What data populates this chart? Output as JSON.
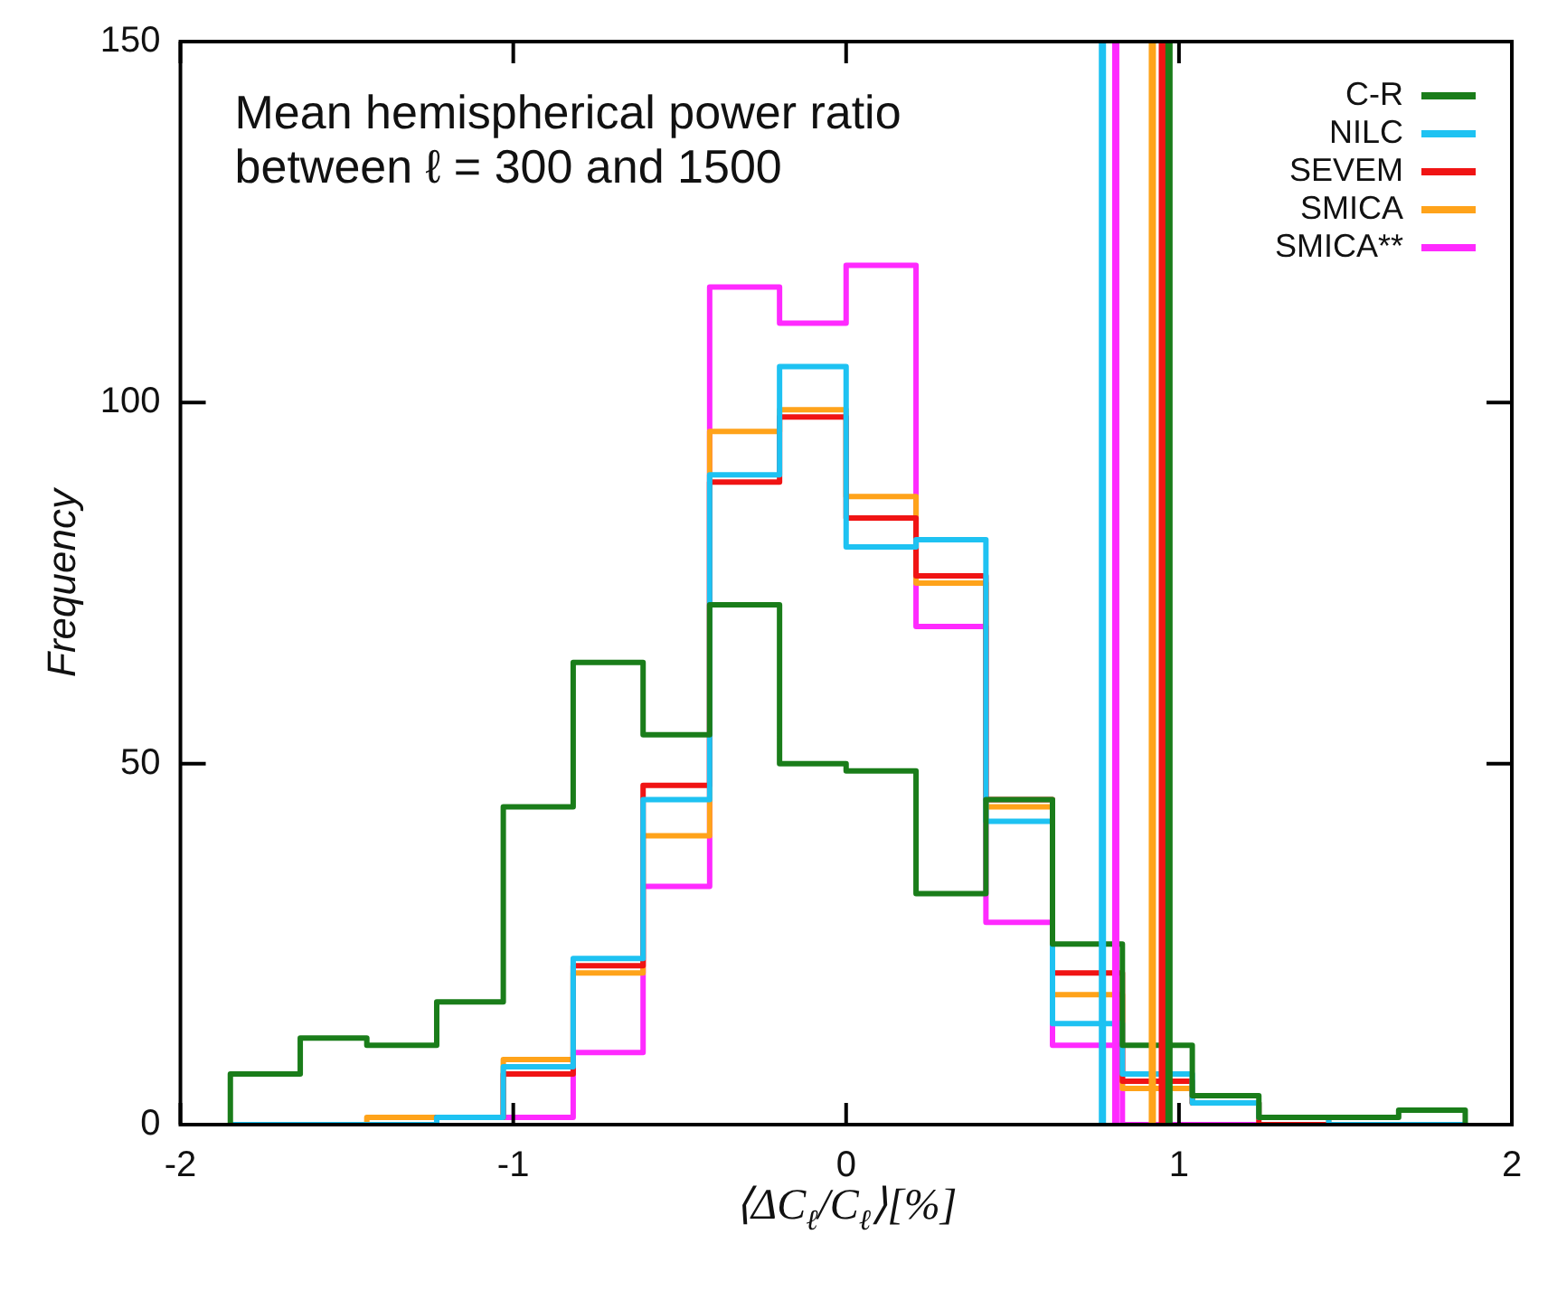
{
  "chart_data": {
    "type": "histogram",
    "title": "Mean hemispherical power ratio between ℓ = 300 and 1500",
    "xlabel": "⟨ΔC$_{ℓ}$/C$_{ℓ}$⟩[%]",
    "ylabel": "Frequency",
    "bins": [
      -1.85,
      -1.64,
      -1.44,
      -1.23,
      -1.03,
      -0.82,
      -0.61,
      -0.41,
      -0.2,
      0.0,
      0.21,
      0.42,
      0.62,
      0.83,
      1.04,
      1.24,
      1.45,
      1.66,
      1.86
    ],
    "series": [
      {
        "name": "C-R",
        "color": "#1a7d1a",
        "values": [
          7,
          12,
          11,
          17,
          44,
          64,
          54,
          72,
          50,
          49,
          32,
          45,
          25,
          11,
          4,
          1,
          1,
          2
        ]
      },
      {
        "name": "NILC",
        "color": "#1ec2f2",
        "values": [
          0,
          0,
          0,
          1,
          8,
          23,
          45,
          90,
          105,
          80,
          81,
          42,
          14,
          7,
          3,
          1,
          0,
          0
        ]
      },
      {
        "name": "SEVEM",
        "color": "#f01414",
        "values": [
          0,
          0,
          0,
          1,
          7,
          22,
          47,
          89,
          98,
          84,
          76,
          45,
          21,
          6,
          3,
          0,
          0,
          0
        ]
      },
      {
        "name": "SMICA",
        "color": "#ffa31a",
        "values": [
          0,
          0,
          1,
          1,
          9,
          21,
          40,
          96,
          99,
          87,
          75,
          44,
          18,
          5,
          3,
          1,
          0,
          0
        ]
      },
      {
        "name": "SMICA**",
        "color": "#ff2aff",
        "values": [
          0,
          0,
          0,
          1,
          1,
          10,
          33,
          116,
          111,
          119,
          69,
          28,
          11,
          0,
          0,
          0,
          0,
          0
        ]
      }
    ],
    "ref_lines": [
      {
        "axis": "x",
        "value": 0.77,
        "color": "#1ec2f2"
      },
      {
        "axis": "x",
        "value": 0.81,
        "color": "#ff2aff"
      },
      {
        "axis": "x",
        "value": 0.92,
        "color": "#ffa31a"
      },
      {
        "axis": "x",
        "value": 0.95,
        "color": "#f01414"
      },
      {
        "axis": "x",
        "value": 0.97,
        "color": "#1a7d1a"
      }
    ],
    "xlim": [
      -2,
      2
    ],
    "ylim": [
      0,
      150
    ],
    "xticks": [
      -2,
      -1,
      0,
      1,
      2
    ],
    "yticks": [
      0,
      50,
      100,
      150
    ],
    "legend": "top right"
  }
}
